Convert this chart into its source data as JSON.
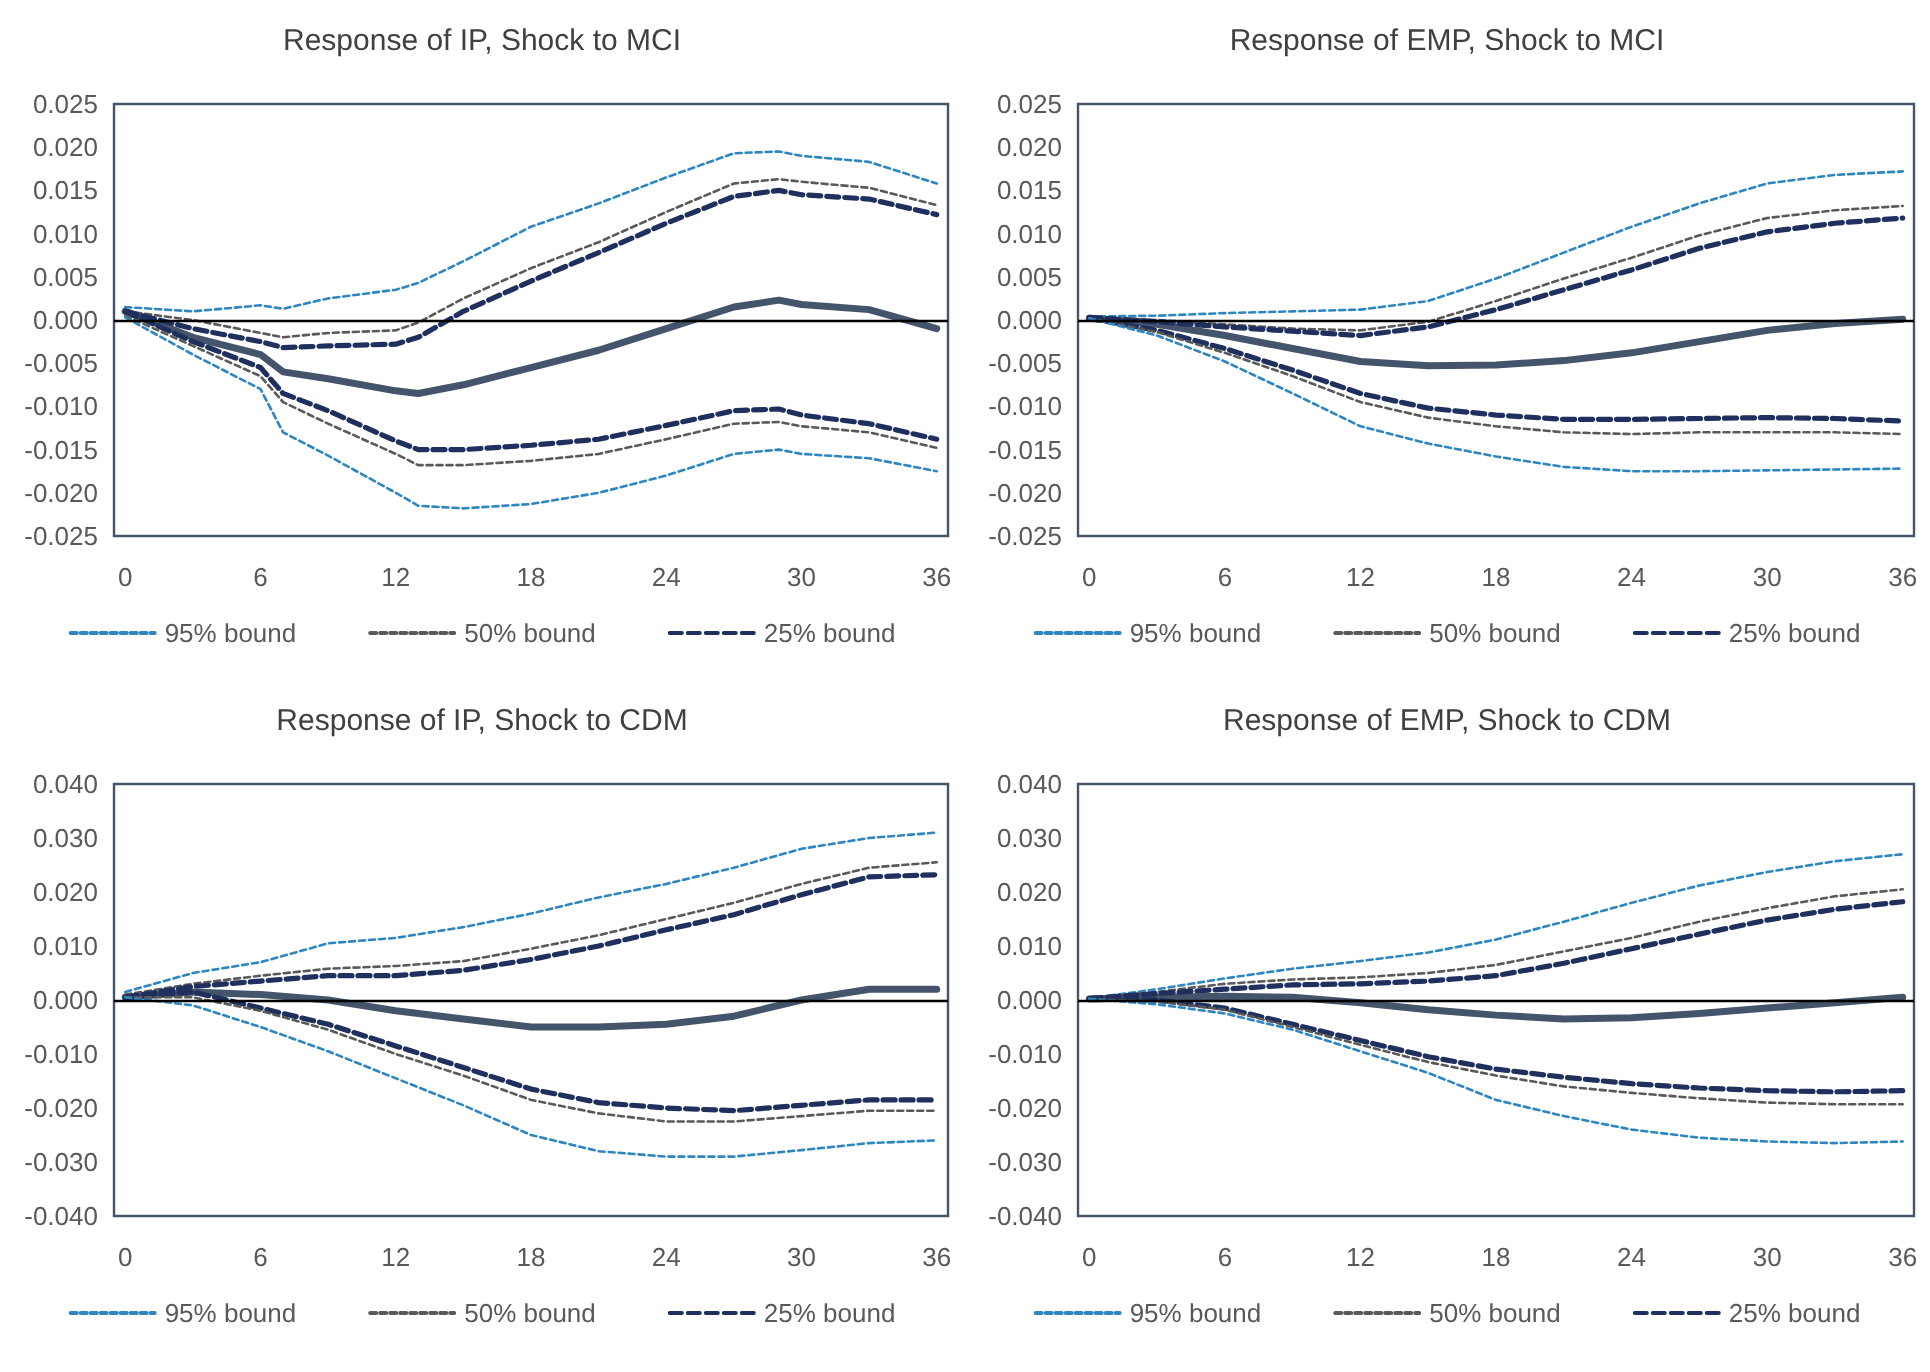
{
  "chart_data": [
    {
      "type": "line",
      "title": "Response of IP, Shock to MCI",
      "x": [
        0,
        3,
        6,
        7,
        9,
        12,
        13,
        15,
        18,
        21,
        24,
        27,
        29,
        30,
        33,
        36
      ],
      "xlim": [
        -0.5,
        36.5
      ],
      "xticks": [
        0,
        6,
        12,
        18,
        24,
        30,
        36
      ],
      "ylim": [
        -0.025,
        0.025
      ],
      "yticks": [
        {
          "value": -0.025,
          "label": "-0.025"
        },
        {
          "value": -0.02,
          "label": "-0.020"
        },
        {
          "value": -0.015,
          "label": "-0.015"
        },
        {
          "value": -0.01,
          "label": "-0.010"
        },
        {
          "value": -0.005,
          "label": "-0.005"
        },
        {
          "value": 0,
          "label": "0.000"
        },
        {
          "value": 0.005,
          "label": "0.005"
        },
        {
          "value": 0.01,
          "label": "0.010"
        },
        {
          "value": 0.015,
          "label": "0.015"
        },
        {
          "value": 0.02,
          "label": "0.020"
        },
        {
          "value": 0.025,
          "label": "0.025"
        }
      ],
      "grid": false,
      "legend": "bottom",
      "marker": "none",
      "ref_lines": [
        {
          "axis": "y",
          "value": 0,
          "color": "#000000"
        }
      ],
      "series": [
        {
          "name": "95% bound",
          "color": "#2e86c1",
          "line_style": "dotted",
          "values": [
            0.0015,
            0.001,
            0.0017,
            0.0013,
            0.0025,
            0.0035,
            0.0043,
            0.0068,
            0.0108,
            0.0135,
            0.0165,
            0.0193,
            0.0195,
            0.019,
            0.0183,
            0.0158
          ]
        },
        {
          "name": "50% bound",
          "color": "#595959",
          "line_style": "dotted",
          "values": [
            0.001,
            0.0,
            -0.0015,
            -0.002,
            -0.0015,
            -0.0012,
            -0.0003,
            0.0025,
            0.006,
            0.009,
            0.0125,
            0.0158,
            0.0163,
            0.016,
            0.0153,
            0.0133
          ]
        },
        {
          "name": "25% bound",
          "color": "#1f2f5e",
          "line_style": "dashed",
          "values": [
            0.001,
            -0.001,
            -0.0025,
            -0.0032,
            -0.003,
            -0.0028,
            -0.002,
            0.001,
            0.0045,
            0.0078,
            0.0112,
            0.0143,
            0.015,
            0.0145,
            0.014,
            0.0122
          ]
        },
        {
          "color": "#44546a",
          "line_style": "solid",
          "values": [
            0.001,
            -0.002,
            -0.004,
            -0.006,
            -0.0068,
            -0.0082,
            -0.0085,
            -0.0075,
            -0.0055,
            -0.0035,
            -0.001,
            0.0015,
            0.0023,
            0.0018,
            0.0012,
            -0.001
          ]
        },
        {
          "color": "#1f2f5e",
          "line_style": "dashed",
          "values": [
            0.001,
            -0.0025,
            -0.0055,
            -0.0085,
            -0.0105,
            -0.014,
            -0.015,
            -0.015,
            -0.0145,
            -0.0138,
            -0.0122,
            -0.0105,
            -0.0103,
            -0.011,
            -0.012,
            -0.0138
          ]
        },
        {
          "color": "#595959",
          "line_style": "dotted",
          "values": [
            0.0005,
            -0.003,
            -0.0065,
            -0.0095,
            -0.012,
            -0.0155,
            -0.0168,
            -0.0168,
            -0.0163,
            -0.0155,
            -0.0138,
            -0.012,
            -0.0118,
            -0.0123,
            -0.013,
            -0.0148
          ]
        },
        {
          "color": "#2e86c1",
          "line_style": "dotted",
          "values": [
            0.0003,
            -0.004,
            -0.008,
            -0.013,
            -0.0157,
            -0.02,
            -0.0215,
            -0.0218,
            -0.0213,
            -0.02,
            -0.018,
            -0.0155,
            -0.015,
            -0.0155,
            -0.016,
            -0.0175
          ]
        }
      ]
    },
    {
      "type": "line",
      "title": "Response of EMP, Shock to MCI",
      "x": [
        0,
        3,
        6,
        9,
        12,
        15,
        18,
        21,
        24,
        27,
        30,
        33,
        36
      ],
      "xlim": [
        -0.5,
        36.5
      ],
      "xticks": [
        0,
        6,
        12,
        18,
        24,
        30,
        36
      ],
      "ylim": [
        -0.025,
        0.025
      ],
      "yticks": [
        {
          "value": -0.025,
          "label": "-0.025"
        },
        {
          "value": -0.02,
          "label": "-0.020"
        },
        {
          "value": -0.015,
          "label": "-0.015"
        },
        {
          "value": -0.01,
          "label": "-0.010"
        },
        {
          "value": -0.005,
          "label": "-0.005"
        },
        {
          "value": 0,
          "label": "0.000"
        },
        {
          "value": 0.005,
          "label": "0.005"
        },
        {
          "value": 0.01,
          "label": "0.010"
        },
        {
          "value": 0.015,
          "label": "0.015"
        },
        {
          "value": 0.02,
          "label": "0.020"
        },
        {
          "value": 0.025,
          "label": "0.025"
        }
      ],
      "grid": false,
      "legend": "bottom",
      "marker": "none",
      "ref_lines": [
        {
          "axis": "y",
          "value": 0,
          "color": "#000000"
        }
      ],
      "series": [
        {
          "name": "95% bound",
          "color": "#2e86c1",
          "line_style": "dotted",
          "values": [
            0.0004,
            0.0005,
            0.0008,
            0.001,
            0.0012,
            0.0022,
            0.0048,
            0.0078,
            0.0108,
            0.0135,
            0.0158,
            0.0168,
            0.0172
          ]
        },
        {
          "name": "50% bound",
          "color": "#595959",
          "line_style": "dotted",
          "values": [
            0.0003,
            0,
            -0.0005,
            -0.001,
            -0.0012,
            -0.0002,
            0.0022,
            0.0048,
            0.0072,
            0.0098,
            0.0118,
            0.0127,
            0.0132
          ]
        },
        {
          "name": "25% bound",
          "color": "#1f2f5e",
          "line_style": "dashed",
          "values": [
            0.0003,
            -0.0002,
            -0.0008,
            -0.0013,
            -0.0018,
            -0.0008,
            0.0012,
            0.0035,
            0.0058,
            0.0083,
            0.0102,
            0.0112,
            0.0118
          ]
        },
        {
          "color": "#44546a",
          "line_style": "solid",
          "values": [
            0.0002,
            -0.0005,
            -0.0018,
            -0.0033,
            -0.0048,
            -0.0053,
            -0.0052,
            -0.0047,
            -0.0038,
            -0.0025,
            -0.0012,
            -0.0004,
            0.0001
          ]
        },
        {
          "color": "#1f2f5e",
          "line_style": "dashed",
          "values": [
            0.0002,
            -0.0012,
            -0.0033,
            -0.0058,
            -0.0085,
            -0.0102,
            -0.011,
            -0.0115,
            -0.0115,
            -0.0114,
            -0.0113,
            -0.0114,
            -0.0117
          ]
        },
        {
          "color": "#595959",
          "line_style": "dotted",
          "values": [
            0.0002,
            -0.0014,
            -0.0038,
            -0.0065,
            -0.0095,
            -0.0113,
            -0.0123,
            -0.013,
            -0.0132,
            -0.013,
            -0.013,
            -0.013,
            -0.0132
          ]
        },
        {
          "color": "#2e86c1",
          "line_style": "dotted",
          "values": [
            0.0002,
            -0.0018,
            -0.0048,
            -0.0085,
            -0.0123,
            -0.0143,
            -0.0158,
            -0.017,
            -0.0175,
            -0.0175,
            -0.0174,
            -0.0173,
            -0.0172
          ]
        }
      ]
    },
    {
      "type": "line",
      "title": "Response of IP, Shock to CDM",
      "x": [
        0,
        3,
        6,
        9,
        12,
        15,
        18,
        21,
        24,
        27,
        30,
        33,
        36
      ],
      "xlim": [
        -0.5,
        36.5
      ],
      "xticks": [
        0,
        6,
        12,
        18,
        24,
        30,
        36
      ],
      "ylim": [
        -0.04,
        0.04
      ],
      "yticks": [
        {
          "value": -0.04,
          "label": "-0.040"
        },
        {
          "value": -0.03,
          "label": "-0.030"
        },
        {
          "value": -0.02,
          "label": "-0.020"
        },
        {
          "value": -0.01,
          "label": "-0.010"
        },
        {
          "value": 0,
          "label": "0.000"
        },
        {
          "value": 0.01,
          "label": "0.010"
        },
        {
          "value": 0.02,
          "label": "0.020"
        },
        {
          "value": 0.03,
          "label": "0.030"
        },
        {
          "value": 0.04,
          "label": "0.040"
        }
      ],
      "grid": false,
      "legend": "bottom",
      "marker": "none",
      "ref_lines": [
        {
          "axis": "y",
          "value": 0,
          "color": "#000000"
        }
      ],
      "series": [
        {
          "name": "95% bound",
          "color": "#2e86c1",
          "line_style": "dotted",
          "values": [
            0.0015,
            0.005,
            0.007,
            0.0105,
            0.0115,
            0.0135,
            0.016,
            0.019,
            0.0215,
            0.0245,
            0.028,
            0.03,
            0.031
          ]
        },
        {
          "name": "50% bound",
          "color": "#595959",
          "line_style": "dotted",
          "values": [
            0.001,
            0.003,
            0.0045,
            0.0058,
            0.0063,
            0.0072,
            0.0095,
            0.012,
            0.015,
            0.018,
            0.0215,
            0.0245,
            0.0255
          ]
        },
        {
          "name": "25% bound",
          "color": "#1f2f5e",
          "line_style": "dashed",
          "values": [
            0.0005,
            0.0025,
            0.0035,
            0.0045,
            0.0045,
            0.0055,
            0.0075,
            0.01,
            0.013,
            0.0158,
            0.0195,
            0.0228,
            0.0232
          ]
        },
        {
          "color": "#44546a",
          "line_style": "solid",
          "values": [
            0.0005,
            0.0015,
            0.001,
            0,
            -0.002,
            -0.0035,
            -0.005,
            -0.005,
            -0.0045,
            -0.003,
            0,
            0.002,
            0.002
          ]
        },
        {
          "color": "#1f2f5e",
          "line_style": "dashed",
          "values": [
            0.0005,
            0.0015,
            -0.0015,
            -0.0045,
            -0.0085,
            -0.0125,
            -0.0165,
            -0.019,
            -0.02,
            -0.0205,
            -0.0195,
            -0.0185,
            -0.0185
          ]
        },
        {
          "color": "#595959",
          "line_style": "dotted",
          "values": [
            0.0005,
            0.0005,
            -0.002,
            -0.0055,
            -0.01,
            -0.014,
            -0.0185,
            -0.021,
            -0.0225,
            -0.0225,
            -0.0215,
            -0.0205,
            -0.0205
          ]
        },
        {
          "color": "#2e86c1",
          "line_style": "dotted",
          "values": [
            0.0005,
            -0.001,
            -0.005,
            -0.0095,
            -0.0145,
            -0.0195,
            -0.025,
            -0.028,
            -0.029,
            -0.029,
            -0.0278,
            -0.0265,
            -0.026
          ]
        }
      ]
    },
    {
      "type": "line",
      "title": "Response of EMP, Shock to CDM",
      "x": [
        0,
        3,
        6,
        9,
        12,
        15,
        18,
        21,
        24,
        27,
        30,
        33,
        36
      ],
      "xlim": [
        -0.5,
        36.5
      ],
      "xticks": [
        0,
        6,
        12,
        18,
        24,
        30,
        36
      ],
      "ylim": [
        -0.04,
        0.04
      ],
      "yticks": [
        {
          "value": -0.04,
          "label": "-0.040"
        },
        {
          "value": -0.03,
          "label": "-0.030"
        },
        {
          "value": -0.02,
          "label": "-0.020"
        },
        {
          "value": -0.01,
          "label": "-0.010"
        },
        {
          "value": 0,
          "label": "0.000"
        },
        {
          "value": 0.01,
          "label": "0.010"
        },
        {
          "value": 0.02,
          "label": "0.020"
        },
        {
          "value": 0.03,
          "label": "0.030"
        },
        {
          "value": 0.04,
          "label": "0.040"
        }
      ],
      "grid": false,
      "legend": "bottom",
      "marker": "none",
      "ref_lines": [
        {
          "axis": "y",
          "value": 0,
          "color": "#000000"
        }
      ],
      "series": [
        {
          "name": "95% bound",
          "color": "#2e86c1",
          "line_style": "dotted",
          "values": [
            0.0003,
            0.002,
            0.004,
            0.0058,
            0.0072,
            0.0088,
            0.0112,
            0.0145,
            0.018,
            0.0212,
            0.0237,
            0.0257,
            0.027
          ]
        },
        {
          "name": "50% bound",
          "color": "#595959",
          "line_style": "dotted",
          "values": [
            0.0003,
            0.0015,
            0.003,
            0.0038,
            0.0042,
            0.005,
            0.0065,
            0.009,
            0.0115,
            0.0145,
            0.017,
            0.0192,
            0.0205
          ]
        },
        {
          "name": "25% bound",
          "color": "#1f2f5e",
          "line_style": "dashed",
          "values": [
            0.0003,
            0.0012,
            0.002,
            0.0028,
            0.003,
            0.0035,
            0.0045,
            0.0068,
            0.0095,
            0.0122,
            0.0148,
            0.0168,
            0.0182
          ]
        },
        {
          "color": "#44546a",
          "line_style": "solid",
          "values": [
            0.0002,
            0.0005,
            0.0007,
            0.0005,
            -0.0005,
            -0.0018,
            -0.0028,
            -0.0035,
            -0.0033,
            -0.0025,
            -0.0015,
            -0.0005,
            0.0005
          ]
        },
        {
          "color": "#1f2f5e",
          "line_style": "dashed",
          "values": [
            0.0002,
            0,
            -0.0015,
            -0.0045,
            -0.0075,
            -0.0105,
            -0.0128,
            -0.0143,
            -0.0155,
            -0.0163,
            -0.0168,
            -0.017,
            -0.0168
          ]
        },
        {
          "color": "#595959",
          "line_style": "dotted",
          "values": [
            0.0002,
            -0.0003,
            -0.0018,
            -0.005,
            -0.0083,
            -0.0115,
            -0.014,
            -0.016,
            -0.0172,
            -0.0182,
            -0.019,
            -0.0193,
            -0.0193
          ]
        },
        {
          "color": "#2e86c1",
          "line_style": "dotted",
          "values": [
            0.0002,
            -0.0008,
            -0.0025,
            -0.0055,
            -0.0095,
            -0.0135,
            -0.0185,
            -0.0215,
            -0.024,
            -0.0255,
            -0.0262,
            -0.0265,
            -0.0262
          ]
        }
      ]
    }
  ]
}
